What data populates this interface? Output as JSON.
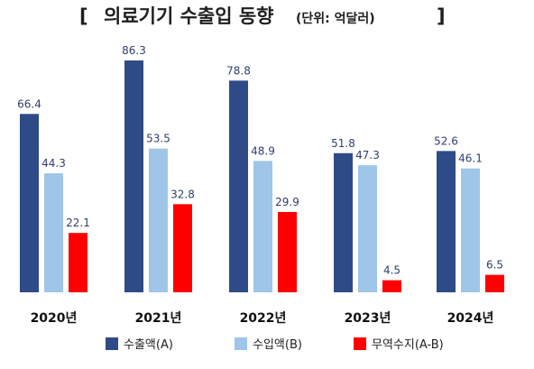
{
  "chart_data": {
    "type": "bar",
    "title_bracket_open": "[",
    "title": "의료기기 수출입 동향",
    "unit": "(단위: 억달러)",
    "title_bracket_close": "]",
    "categories": [
      "2020년",
      "2021년",
      "2022년",
      "2023년",
      "2024년"
    ],
    "series": [
      {
        "name": "수출액(A)",
        "color": "#2f4b87",
        "values": [
          66.4,
          86.3,
          78.8,
          51.8,
          52.6
        ]
      },
      {
        "name": "수입액(B)",
        "color": "#9fc5e8",
        "values": [
          44.3,
          53.5,
          48.9,
          47.3,
          46.1
        ]
      },
      {
        "name": "무역수지(A-B)",
        "color": "#ff0000",
        "values": [
          22.1,
          32.8,
          29.9,
          4.5,
          6.5
        ]
      }
    ],
    "ylim": [
      0,
      90
    ],
    "grid": false,
    "legend_position": "bottom"
  }
}
